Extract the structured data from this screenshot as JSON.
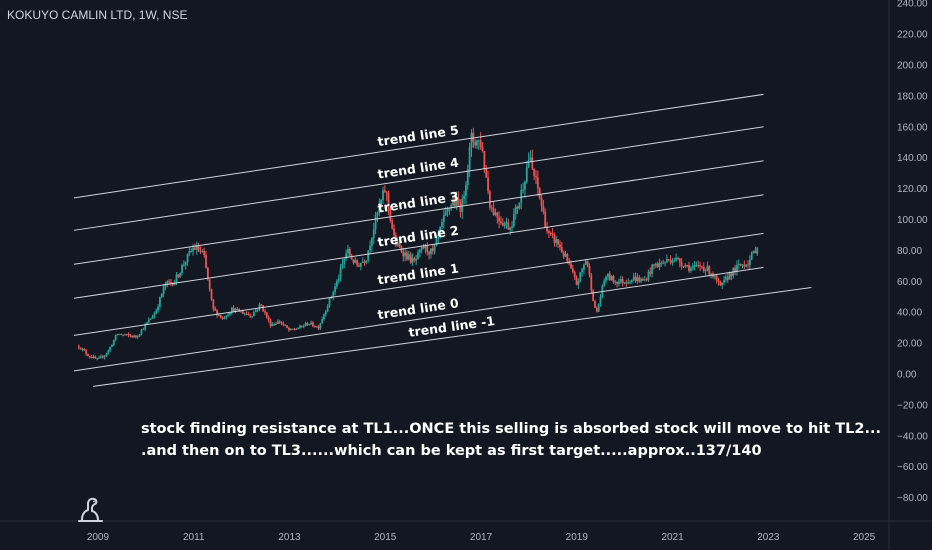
{
  "header": {
    "symbol_label": "KOKUYO CAMLIN LTD, 1W, NSE"
  },
  "annotation": {
    "line1": "stock finding resistance at TL1...ONCE this selling is absorbed stock will move to hit TL2...",
    "line2": ".and then on to TL3......which can be kept as first target.....approx..137/140"
  },
  "colors": {
    "background": "#131722",
    "up": "#26a69a",
    "down": "#ef5350",
    "axis_text": "#b2b5be",
    "trend_line": "#d1d4dc",
    "label": "#ffffff"
  },
  "chart_data": {
    "type": "line",
    "title": "KOKUYO CAMLIN LTD, 1W, NSE",
    "xlabel": "",
    "ylabel": "",
    "x_ticks": [
      "2009",
      "2011",
      "2013",
      "2015",
      "2017",
      "2019",
      "2021",
      "2023",
      "2025"
    ],
    "y_ticks": [
      240,
      220,
      200,
      180,
      160,
      140,
      120,
      100,
      80,
      60,
      40,
      20,
      0,
      -20,
      -40,
      -60,
      -80
    ],
    "y_tick_labels": [
      "240.00",
      "220.00",
      "200.00",
      "180.00",
      "160.00",
      "140.00",
      "120.00",
      "100.00",
      "80.00",
      "60.00",
      "40.00",
      "20.00",
      "0.00",
      "−20.00",
      "−40.00",
      "−60.00",
      "−80.00"
    ],
    "xlim": [
      2008.5,
      2026.0
    ],
    "ylim": [
      -92,
      240
    ],
    "grid": false,
    "series": [
      {
        "style": "candlestick-approx",
        "x": [
          2008.6,
          2008.8,
          2009.0,
          2009.2,
          2009.4,
          2009.6,
          2009.8,
          2010.0,
          2010.2,
          2010.4,
          2010.6,
          2010.8,
          2011.0,
          2011.2,
          2011.4,
          2011.6,
          2011.8,
          2012.0,
          2012.2,
          2012.4,
          2012.6,
          2012.8,
          2013.0,
          2013.2,
          2013.4,
          2013.6,
          2013.8,
          2014.0,
          2014.2,
          2014.4,
          2014.6,
          2014.8,
          2015.0,
          2015.2,
          2015.4,
          2015.6,
          2015.8,
          2016.0,
          2016.2,
          2016.4,
          2016.6,
          2016.8,
          2017.0,
          2017.2,
          2017.4,
          2017.6,
          2017.8,
          2018.0,
          2018.2,
          2018.4,
          2018.6,
          2018.8,
          2019.0,
          2019.2,
          2019.4,
          2019.6,
          2019.8,
          2020.0,
          2020.2,
          2020.4,
          2020.6,
          2020.8,
          2021.0,
          2021.2,
          2021.4,
          2021.6,
          2021.8,
          2022.0,
          2022.2,
          2022.4,
          2022.6,
          2022.8
        ],
        "values": [
          18,
          12,
          9,
          14,
          26,
          25,
          24,
          32,
          40,
          58,
          60,
          72,
          82,
          78,
          42,
          36,
          42,
          40,
          38,
          45,
          32,
          34,
          28,
          30,
          33,
          30,
          45,
          60,
          80,
          70,
          75,
          100,
          120,
          85,
          78,
          72,
          82,
          78,
          98,
          112,
          108,
          152,
          150,
          108,
          100,
          95,
          112,
          140,
          118,
          90,
          85,
          73,
          58,
          75,
          38,
          64,
          60,
          60,
          62,
          60,
          70,
          72,
          75,
          72,
          68,
          70,
          66,
          56,
          65,
          70,
          73,
          85
        ]
      }
    ],
    "trend_lines": [
      {
        "label": "trend line 5",
        "start": {
          "x": 2008.5,
          "y": 114
        },
        "end": {
          "x": 2022.9,
          "y": 181
        }
      },
      {
        "label": "trend line 4",
        "start": {
          "x": 2008.5,
          "y": 93
        },
        "end": {
          "x": 2022.9,
          "y": 160
        }
      },
      {
        "label": "trend line 3",
        "start": {
          "x": 2008.5,
          "y": 71
        },
        "end": {
          "x": 2022.9,
          "y": 138
        }
      },
      {
        "label": "trend line 2",
        "start": {
          "x": 2008.5,
          "y": 49
        },
        "end": {
          "x": 2022.9,
          "y": 116
        }
      },
      {
        "label": "trend line 1",
        "start": {
          "x": 2008.5,
          "y": 25
        },
        "end": {
          "x": 2022.9,
          "y": 91
        }
      },
      {
        "label": "trend line 0",
        "start": {
          "x": 2008.5,
          "y": 2
        },
        "end": {
          "x": 2022.9,
          "y": 69
        }
      },
      {
        "label": "trend line -1",
        "start": {
          "x": 2008.9,
          "y": -8
        },
        "end": {
          "x": 2023.9,
          "y": 56
        }
      }
    ]
  }
}
